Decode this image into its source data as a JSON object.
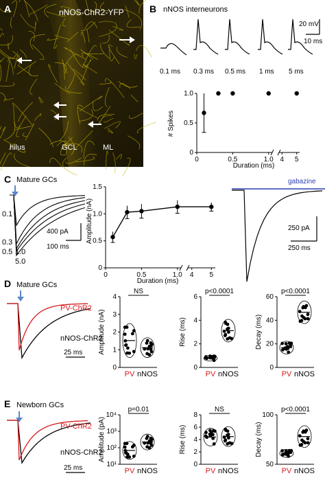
{
  "colors": {
    "yfp": "#c8b400",
    "pv": "#d81a1a",
    "gabazine": "#2b3fb0",
    "arrow": "#5a86c8"
  },
  "panelA": {
    "letter": "A",
    "title": "nNOS-ChR2-YFP",
    "regions": [
      "hilus",
      "GCL",
      "ML"
    ]
  },
  "panelB": {
    "letter": "B",
    "title": "nNOS interneurons",
    "trace_labels": [
      "0.1 ms",
      "0.3 ms",
      "0.5 ms",
      "1 ms",
      "5 ms"
    ],
    "scale_v": "20 mV",
    "scale_t": "10 ms",
    "chart_data": {
      "type": "scatter",
      "xlabel": "Duration (ms)",
      "ylabel": "# Spikes",
      "ylim": [
        0,
        1
      ],
      "yticks": [
        "0",
        "0.5",
        "1.0"
      ],
      "xticks": [
        "0",
        "0.5",
        "1.0",
        "4",
        "5"
      ],
      "x": [
        0.1,
        0.3,
        0.5,
        1.0,
        5
      ],
      "values": [
        0.67,
        1,
        1,
        1,
        1
      ]
    }
  },
  "panelC": {
    "letter": "C",
    "label": "Mature GCs",
    "duration_labels": [
      "0.1",
      "0.3",
      "0.5",
      "1.0",
      "5.0"
    ],
    "scale1_a": "400 pA",
    "scale1_t": "100 ms",
    "gabazine": "gabazine",
    "scale2_a": "250 pA",
    "scale2_t": "250 ms",
    "chart_data": {
      "type": "line",
      "xlabel": "Duration (ms)",
      "ylabel": "Amplitude (nA)",
      "ylim": [
        0,
        1.5
      ],
      "yticks": [
        "0",
        "0.5",
        "1.0",
        "1.5"
      ],
      "xticks": [
        "0",
        "0.5",
        "1.0",
        "4",
        "5"
      ],
      "x": [
        0.1,
        0.3,
        0.5,
        1.0,
        5
      ],
      "values": [
        0.57,
        1.03,
        1.05,
        1.13,
        1.13
      ]
    }
  },
  "panelD": {
    "letter": "D",
    "label": "Mature GCs",
    "trace_pv": "PV-ChR2",
    "trace_nnos": "nNOS-ChR2",
    "scale_t": "25 ms",
    "plots": [
      {
        "ylabel": "Amplitude (nA)",
        "stat": "NS",
        "yticks": [
          "0",
          "1",
          "2",
          "3",
          "4"
        ],
        "ylim": [
          0,
          4
        ],
        "groups": [
          "PV",
          "nNOS"
        ]
      },
      {
        "ylabel": "Rise (ms)",
        "stat": "p<0.0001",
        "yticks": [
          "0",
          "2",
          "4",
          "6"
        ],
        "ylim": [
          0,
          6
        ],
        "groups": [
          "PV",
          "nNOS"
        ]
      },
      {
        "ylabel": "Decay (ms)",
        "stat": "p<0.0001",
        "yticks": [
          "0",
          "20",
          "40",
          "60"
        ],
        "ylim": [
          0,
          60
        ],
        "groups": [
          "PV",
          "nNOS"
        ]
      }
    ]
  },
  "panelE": {
    "letter": "E",
    "label": "Newborn GCs",
    "trace_pv": "PV-ChR2",
    "trace_nnos": "nNOS-ChR2",
    "scale_t": "25 ms",
    "plots": [
      {
        "ylabel": "Amplitude (pA)",
        "stat": "p=0.01",
        "yticks": [
          "10¹",
          "10²",
          "10³",
          "10⁴"
        ],
        "groups": [
          "PV",
          "nNOS"
        ]
      },
      {
        "ylabel": "Rise (ms)",
        "stat": "NS",
        "yticks": [
          "0",
          "2",
          "4",
          "6",
          "8"
        ],
        "ylim": [
          0,
          8
        ],
        "groups": [
          "PV",
          "nNOS"
        ]
      },
      {
        "ylabel": "Decay (ms)",
        "stat": "p<0.0001",
        "yticks": [
          "50",
          "100"
        ],
        "ylim": [
          20,
          120
        ],
        "groups": [
          "PV",
          "nNOS"
        ]
      }
    ]
  }
}
